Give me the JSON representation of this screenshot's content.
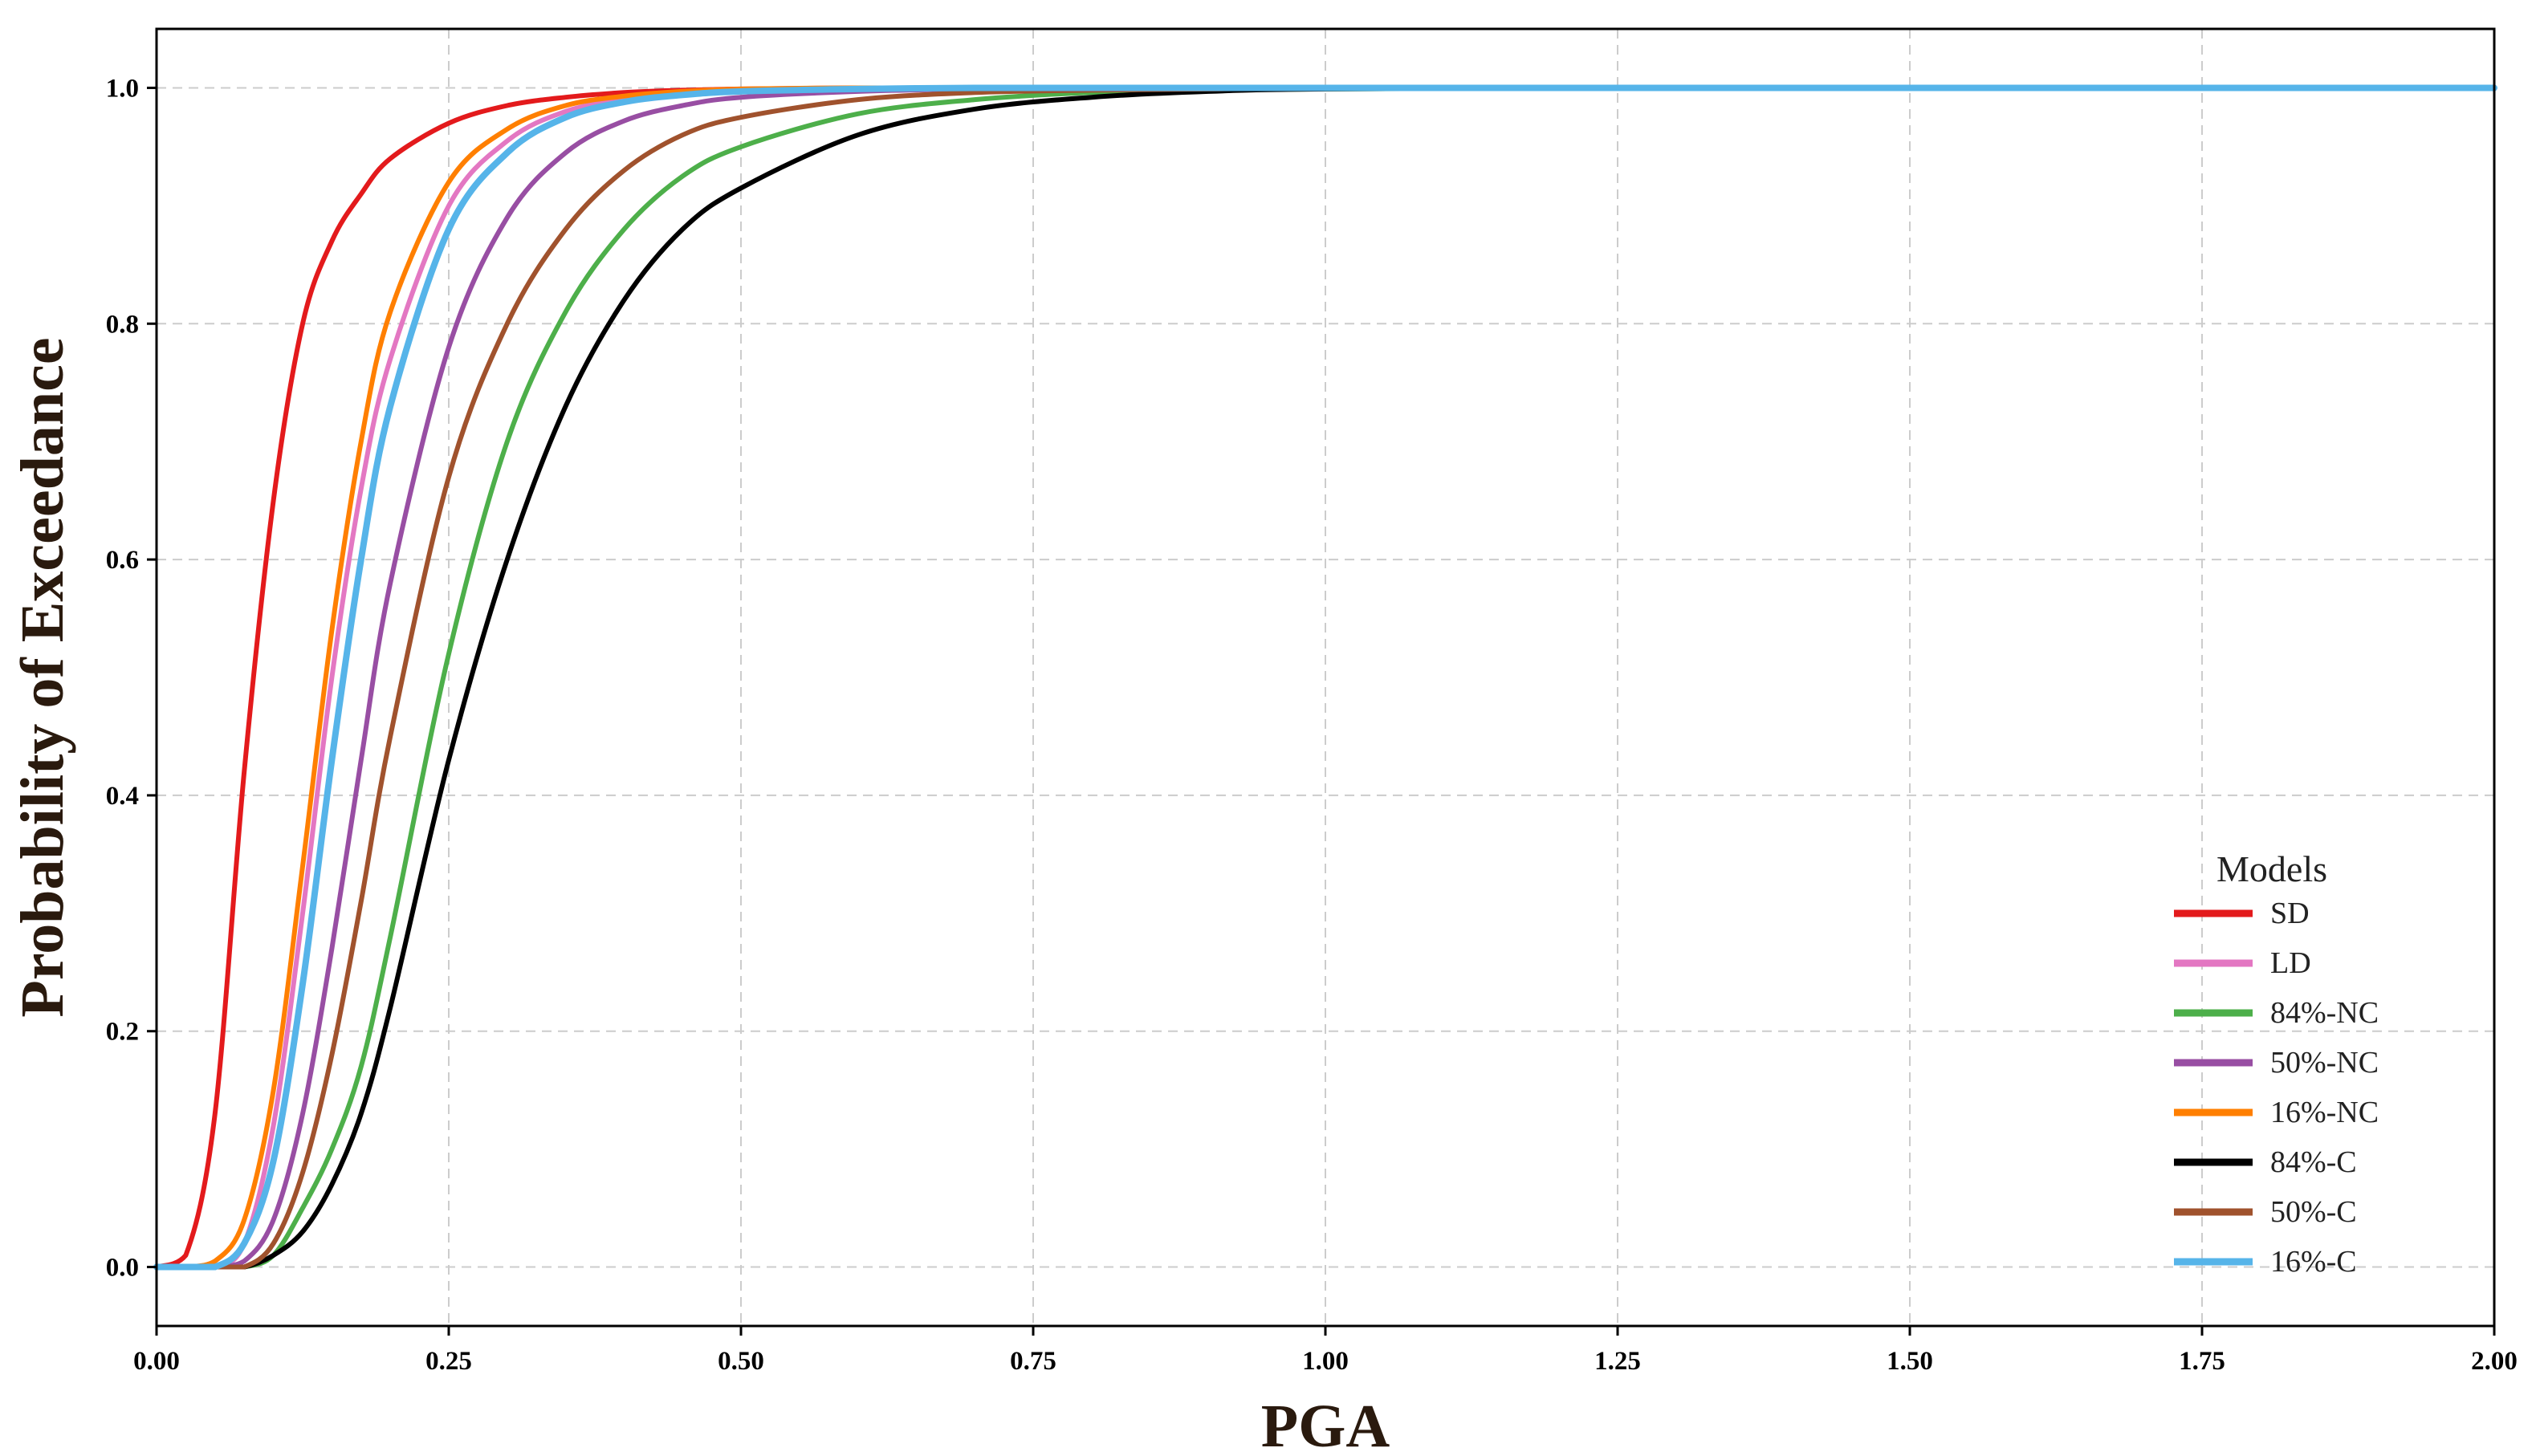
{
  "chart_data": {
    "type": "line",
    "title": "",
    "xlabel": "PGA",
    "ylabel": "Probability of Exceedance",
    "xlim": [
      0,
      2.0
    ],
    "ylim": [
      -0.05,
      1.05
    ],
    "xticks": [
      "0.00",
      "0.25",
      "0.50",
      "0.75",
      "1.00",
      "1.25",
      "1.50",
      "1.75",
      "2.00"
    ],
    "yticks": [
      "0.0",
      "0.2",
      "0.4",
      "0.6",
      "0.8",
      "1.0"
    ],
    "grid": true,
    "legend": {
      "title": "Models",
      "placement": "bottom-right"
    },
    "x": [
      0.0,
      0.025,
      0.05,
      0.075,
      0.1,
      0.125,
      0.15,
      0.175,
      0.2,
      0.25,
      0.3,
      0.35,
      0.4,
      0.45,
      0.5,
      0.6,
      0.7,
      0.8,
      0.9,
      1.0,
      1.25,
      1.5,
      1.75,
      2.0
    ],
    "series": [
      {
        "name": "SD",
        "color": "#e31a1c",
        "values": [
          0.0,
          0.01,
          0.13,
          0.42,
          0.65,
          0.8,
          0.87,
          0.91,
          0.94,
          0.97,
          0.985,
          0.992,
          0.996,
          0.998,
          0.999,
          1.0,
          1.0,
          1.0,
          1.0,
          1.0,
          1.0,
          1.0,
          1.0,
          1.0
        ]
      },
      {
        "name": "LD",
        "color": "#e377c2",
        "values": [
          0.0,
          0.0,
          0.0,
          0.02,
          0.12,
          0.3,
          0.5,
          0.66,
          0.77,
          0.9,
          0.955,
          0.98,
          0.99,
          0.995,
          0.998,
          0.999,
          1.0,
          1.0,
          1.0,
          1.0,
          1.0,
          1.0,
          1.0,
          1.0
        ]
      },
      {
        "name": "84%-NC",
        "color": "#4daf4a",
        "values": [
          0.0,
          0.0,
          0.0,
          0.0,
          0.01,
          0.05,
          0.1,
          0.17,
          0.28,
          0.52,
          0.7,
          0.81,
          0.88,
          0.925,
          0.95,
          0.978,
          0.99,
          0.996,
          0.998,
          0.999,
          1.0,
          1.0,
          1.0,
          1.0
        ]
      },
      {
        "name": "50%-NC",
        "color": "#984ea3",
        "values": [
          0.0,
          0.0,
          0.0,
          0.005,
          0.04,
          0.13,
          0.27,
          0.43,
          0.58,
          0.78,
          0.89,
          0.945,
          0.972,
          0.985,
          0.992,
          0.997,
          0.999,
          1.0,
          1.0,
          1.0,
          1.0,
          1.0,
          1.0,
          1.0
        ]
      },
      {
        "name": "16%-NC",
        "color": "#ff7f00",
        "values": [
          0.0,
          0.0,
          0.005,
          0.04,
          0.15,
          0.34,
          0.54,
          0.7,
          0.81,
          0.92,
          0.965,
          0.985,
          0.993,
          0.997,
          0.999,
          1.0,
          1.0,
          1.0,
          1.0,
          1.0,
          1.0,
          1.0,
          1.0,
          1.0
        ]
      },
      {
        "name": "84%-C",
        "color": "#000000",
        "values": [
          0.0,
          0.0,
          0.0,
          0.0,
          0.01,
          0.03,
          0.07,
          0.13,
          0.22,
          0.43,
          0.6,
          0.73,
          0.82,
          0.88,
          0.915,
          0.96,
          0.982,
          0.992,
          0.997,
          0.999,
          1.0,
          1.0,
          1.0,
          1.0
        ]
      },
      {
        "name": "50%-C",
        "color": "#a0522d",
        "values": [
          0.0,
          0.0,
          0.0,
          0.0,
          0.02,
          0.08,
          0.18,
          0.31,
          0.45,
          0.67,
          0.8,
          0.88,
          0.93,
          0.96,
          0.975,
          0.99,
          0.996,
          0.998,
          0.999,
          1.0,
          1.0,
          1.0,
          1.0,
          1.0
        ]
      },
      {
        "name": "16%-C",
        "color": "#56b4e9",
        "values": [
          0.0,
          0.0,
          0.0,
          0.02,
          0.09,
          0.24,
          0.43,
          0.6,
          0.73,
          0.88,
          0.945,
          0.975,
          0.988,
          0.994,
          0.997,
          0.999,
          1.0,
          1.0,
          1.0,
          1.0,
          1.0,
          1.0,
          1.0,
          1.0
        ]
      }
    ]
  }
}
